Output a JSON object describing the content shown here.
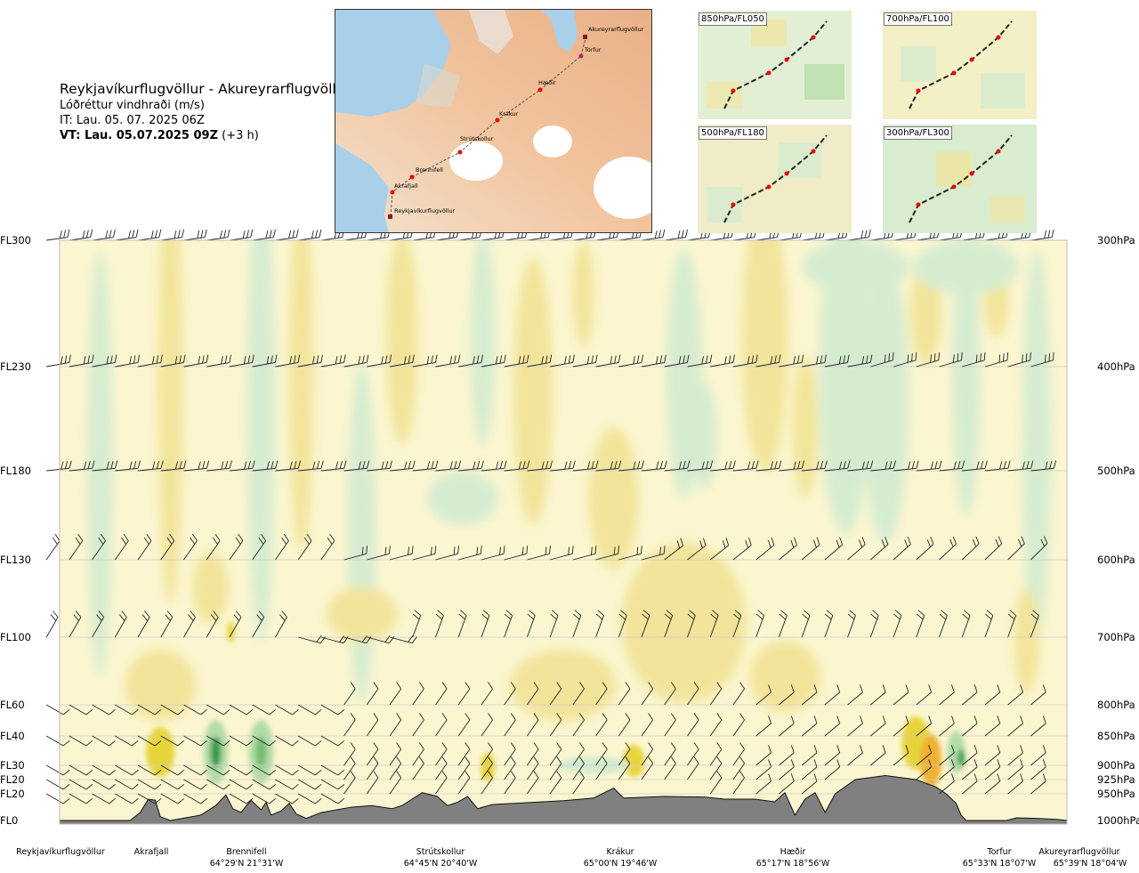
{
  "header": {
    "route": "Reykjavíkurflugvöllur - Akureyrarflugvöllur",
    "variable": "Lóðréttur vindhraði (m/s)",
    "it": "IT: Lau. 05. 07. 2025 06Z",
    "vt_bold": "VT: Lau. 05.07.2025 09Z",
    "vt_offset": "(+3 h)"
  },
  "route_map": {
    "icon": "route-map-icon",
    "waypoints": [
      "Akureyrarflugvöllur",
      "Torfur",
      "Hæðir",
      "Krákur",
      "Strútskollur",
      "Brennifell",
      "Akrafjall",
      "Reykjavíkurflugvöllur"
    ]
  },
  "level_maps": [
    {
      "label": "850hPa/FL050"
    },
    {
      "label": "700hPa/FL100"
    },
    {
      "label": "500hPa/FL180"
    },
    {
      "label": "300hPa/FL300"
    }
  ],
  "colors": {
    "updraft_light": "#fbf6d0",
    "updraft": "#f2e49a",
    "updraft_strong": "#e7d43c",
    "updraft_orange": "#f0b030",
    "downdraft_light": "#d6ecd0",
    "downdraft": "#b3dca6",
    "downdraft_strong": "#6fbb6f",
    "downdraft_dark": "#2f9a4a",
    "terrain": "#808080",
    "gridline": "#cccccc"
  },
  "chart_data": {
    "type": "heatmap",
    "title": "Lóðréttur vindhraði (m/s)",
    "left_axis_labels": [
      {
        "label": "FL300",
        "p": 300
      },
      {
        "label": "FL230",
        "p": 400
      },
      {
        "label": "FL180",
        "p": 500
      },
      {
        "label": "FL130",
        "p": 600
      },
      {
        "label": "FL100",
        "p": 700
      },
      {
        "label": "FL60",
        "p": 800
      },
      {
        "label": "FL40",
        "p": 850
      },
      {
        "label": "FL30",
        "p": 900
      },
      {
        "label": "FL20",
        "p": 925
      },
      {
        "label": "FL20",
        "p": 950
      },
      {
        "label": "FL0",
        "p": 1000
      }
    ],
    "right_axis_labels": [
      {
        "label": "300hPa",
        "p": 300
      },
      {
        "label": "400hPa",
        "p": 400
      },
      {
        "label": "500hPa",
        "p": 500
      },
      {
        "label": "600hPa",
        "p": 600
      },
      {
        "label": "700hPa",
        "p": 700
      },
      {
        "label": "800hPa",
        "p": 800
      },
      {
        "label": "850hPa",
        "p": 850
      },
      {
        "label": "900hPa",
        "p": 900
      },
      {
        "label": "925hPa",
        "p": 925
      },
      {
        "label": "950hPa",
        "p": 950
      },
      {
        "label": "1000hPa",
        "p": 1000
      }
    ],
    "x_range": [
      0,
      1
    ],
    "waypoints": [
      {
        "name": "Reykjavíkurflugvöllur",
        "coord": "",
        "x": 0.0
      },
      {
        "name": "Akrafjall",
        "coord": "",
        "x": 0.088
      },
      {
        "name": "Brennifell",
        "coord": "64°29'N 21°31'W",
        "x": 0.19
      },
      {
        "name": "Strútskollur",
        "coord": "64°45'N 20°40'W",
        "x": 0.375
      },
      {
        "name": "Krákur",
        "coord": "65°00'N 19°46'W",
        "x": 0.55
      },
      {
        "name": "Hæðir",
        "coord": "65°17'N 18°56'W",
        "x": 0.73
      },
      {
        "name": "Torfur",
        "coord": "65°33'N 18°07'W",
        "x": 0.94
      },
      {
        "name": "Akureyrarflugvöllur",
        "coord": "65°39'N 18°04'W",
        "x": 1.0
      }
    ],
    "terrain_profile": [
      [
        0,
        1000
      ],
      [
        0.07,
        1000
      ],
      [
        0.08,
        985
      ],
      [
        0.088,
        960
      ],
      [
        0.095,
        962
      ],
      [
        0.1,
        993
      ],
      [
        0.11,
        1000
      ],
      [
        0.14,
        990
      ],
      [
        0.155,
        972
      ],
      [
        0.165,
        952
      ],
      [
        0.172,
        978
      ],
      [
        0.18,
        985
      ],
      [
        0.19,
        962
      ],
      [
        0.2,
        980
      ],
      [
        0.205,
        966
      ],
      [
        0.21,
        990
      ],
      [
        0.22,
        982
      ],
      [
        0.228,
        968
      ],
      [
        0.235,
        988
      ],
      [
        0.245,
        996
      ],
      [
        0.26,
        985
      ],
      [
        0.29,
        975
      ],
      [
        0.31,
        972
      ],
      [
        0.33,
        978
      ],
      [
        0.34,
        972
      ],
      [
        0.35,
        960
      ],
      [
        0.36,
        948
      ],
      [
        0.375,
        955
      ],
      [
        0.385,
        972
      ],
      [
        0.395,
        966
      ],
      [
        0.405,
        955
      ],
      [
        0.415,
        978
      ],
      [
        0.42,
        975
      ],
      [
        0.43,
        970
      ],
      [
        0.47,
        966
      ],
      [
        0.5,
        963
      ],
      [
        0.53,
        958
      ],
      [
        0.55,
        940
      ],
      [
        0.56,
        958
      ],
      [
        0.6,
        955
      ],
      [
        0.64,
        956
      ],
      [
        0.66,
        960
      ],
      [
        0.69,
        960
      ],
      [
        0.71,
        965
      ],
      [
        0.72,
        948
      ],
      [
        0.73,
        990
      ],
      [
        0.74,
        960
      ],
      [
        0.75,
        948
      ],
      [
        0.76,
        985
      ],
      [
        0.77,
        950
      ],
      [
        0.79,
        925
      ],
      [
        0.82,
        918
      ],
      [
        0.85,
        925
      ],
      [
        0.87,
        938
      ],
      [
        0.88,
        950
      ],
      [
        0.89,
        968
      ],
      [
        0.895,
        990
      ],
      [
        0.9,
        1000
      ],
      [
        0.94,
        1000
      ],
      [
        0.95,
        995
      ],
      [
        0.97,
        996
      ],
      [
        0.99,
        998
      ],
      [
        1,
        1000
      ]
    ],
    "colorbar": {
      "levels": [
        "downdraft_dark",
        "downdraft_strong",
        "downdraft",
        "downdraft_light",
        "updraft_light",
        "updraft",
        "updraft_strong",
        "updraft_orange"
      ]
    }
  }
}
